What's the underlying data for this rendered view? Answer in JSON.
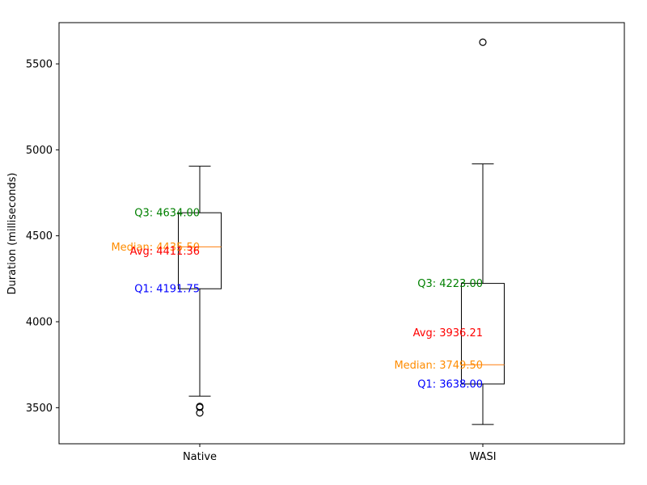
{
  "chart_data": {
    "type": "box",
    "ylabel": "Duration (milliseconds)",
    "xlabel": "",
    "title": "",
    "ylim": [
      3290,
      5740
    ],
    "yticks": [
      3500,
      4000,
      4500,
      5000,
      5500
    ],
    "grid": false,
    "categories": [
      "Native",
      "WASI"
    ],
    "boxes": [
      {
        "category": "Native",
        "whisker_low": 3567,
        "q1": 4191.75,
        "median": 4435.5,
        "q3": 4634.0,
        "whisker_high": 4905,
        "average": 4411.36,
        "outliers": [
          3507,
          3502,
          3470
        ]
      },
      {
        "category": "WASI",
        "whisker_low": 3402,
        "q1": 3638.0,
        "median": 3749.5,
        "q3": 4223.0,
        "whisker_high": 4918,
        "average": 3936.21,
        "outliers": [
          5626
        ]
      }
    ],
    "annotations": [
      {
        "box": 0,
        "kind": "q3",
        "text": "Q3: 4634.00",
        "color": "#008000"
      },
      {
        "box": 0,
        "kind": "median",
        "text": "Median: 4435.50",
        "color": "#ff8c00"
      },
      {
        "box": 0,
        "kind": "average",
        "text": "Avg: 4411.36",
        "color": "#ff0000"
      },
      {
        "box": 0,
        "kind": "q1",
        "text": "Q1: 4191.75",
        "color": "#0000ff"
      },
      {
        "box": 1,
        "kind": "q3",
        "text": "Q3: 4223.00",
        "color": "#008000"
      },
      {
        "box": 1,
        "kind": "average",
        "text": "Avg: 3936.21",
        "color": "#ff0000"
      },
      {
        "box": 1,
        "kind": "median",
        "text": "Median: 3749.50",
        "color": "#ff8c00"
      },
      {
        "box": 1,
        "kind": "q1",
        "text": "Q1: 3638.00",
        "color": "#0000ff"
      }
    ],
    "colors": {
      "box": "#000000",
      "median_line": "#ff7f0e",
      "axis": "#000000"
    }
  }
}
